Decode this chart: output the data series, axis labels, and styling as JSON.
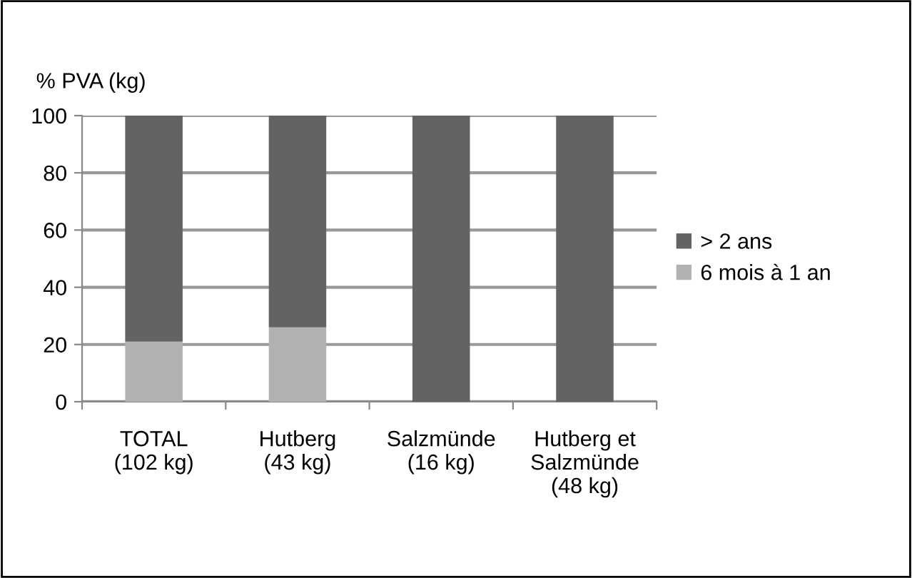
{
  "chart_data": {
    "type": "bar",
    "stacked": true,
    "ylabel": "% PVA (kg)",
    "categories": [
      "TOTAL\n(102 kg)",
      "Hutberg\n(43 kg)",
      "Salzmünde\n(16 kg)",
      "Hutberg et\nSalzmünde\n(48 kg)"
    ],
    "series": [
      {
        "name": "6 mois à 1 an",
        "color": "#b2b2b2",
        "values": [
          21,
          26,
          0,
          0
        ]
      },
      {
        "name": "> 2 ans",
        "color": "#636363",
        "values": [
          79,
          74,
          100,
          100
        ]
      }
    ],
    "ylim": [
      0,
      100
    ],
    "yticks": [
      0,
      20,
      40,
      60,
      80,
      100
    ],
    "grid": "y",
    "legend": "right"
  }
}
